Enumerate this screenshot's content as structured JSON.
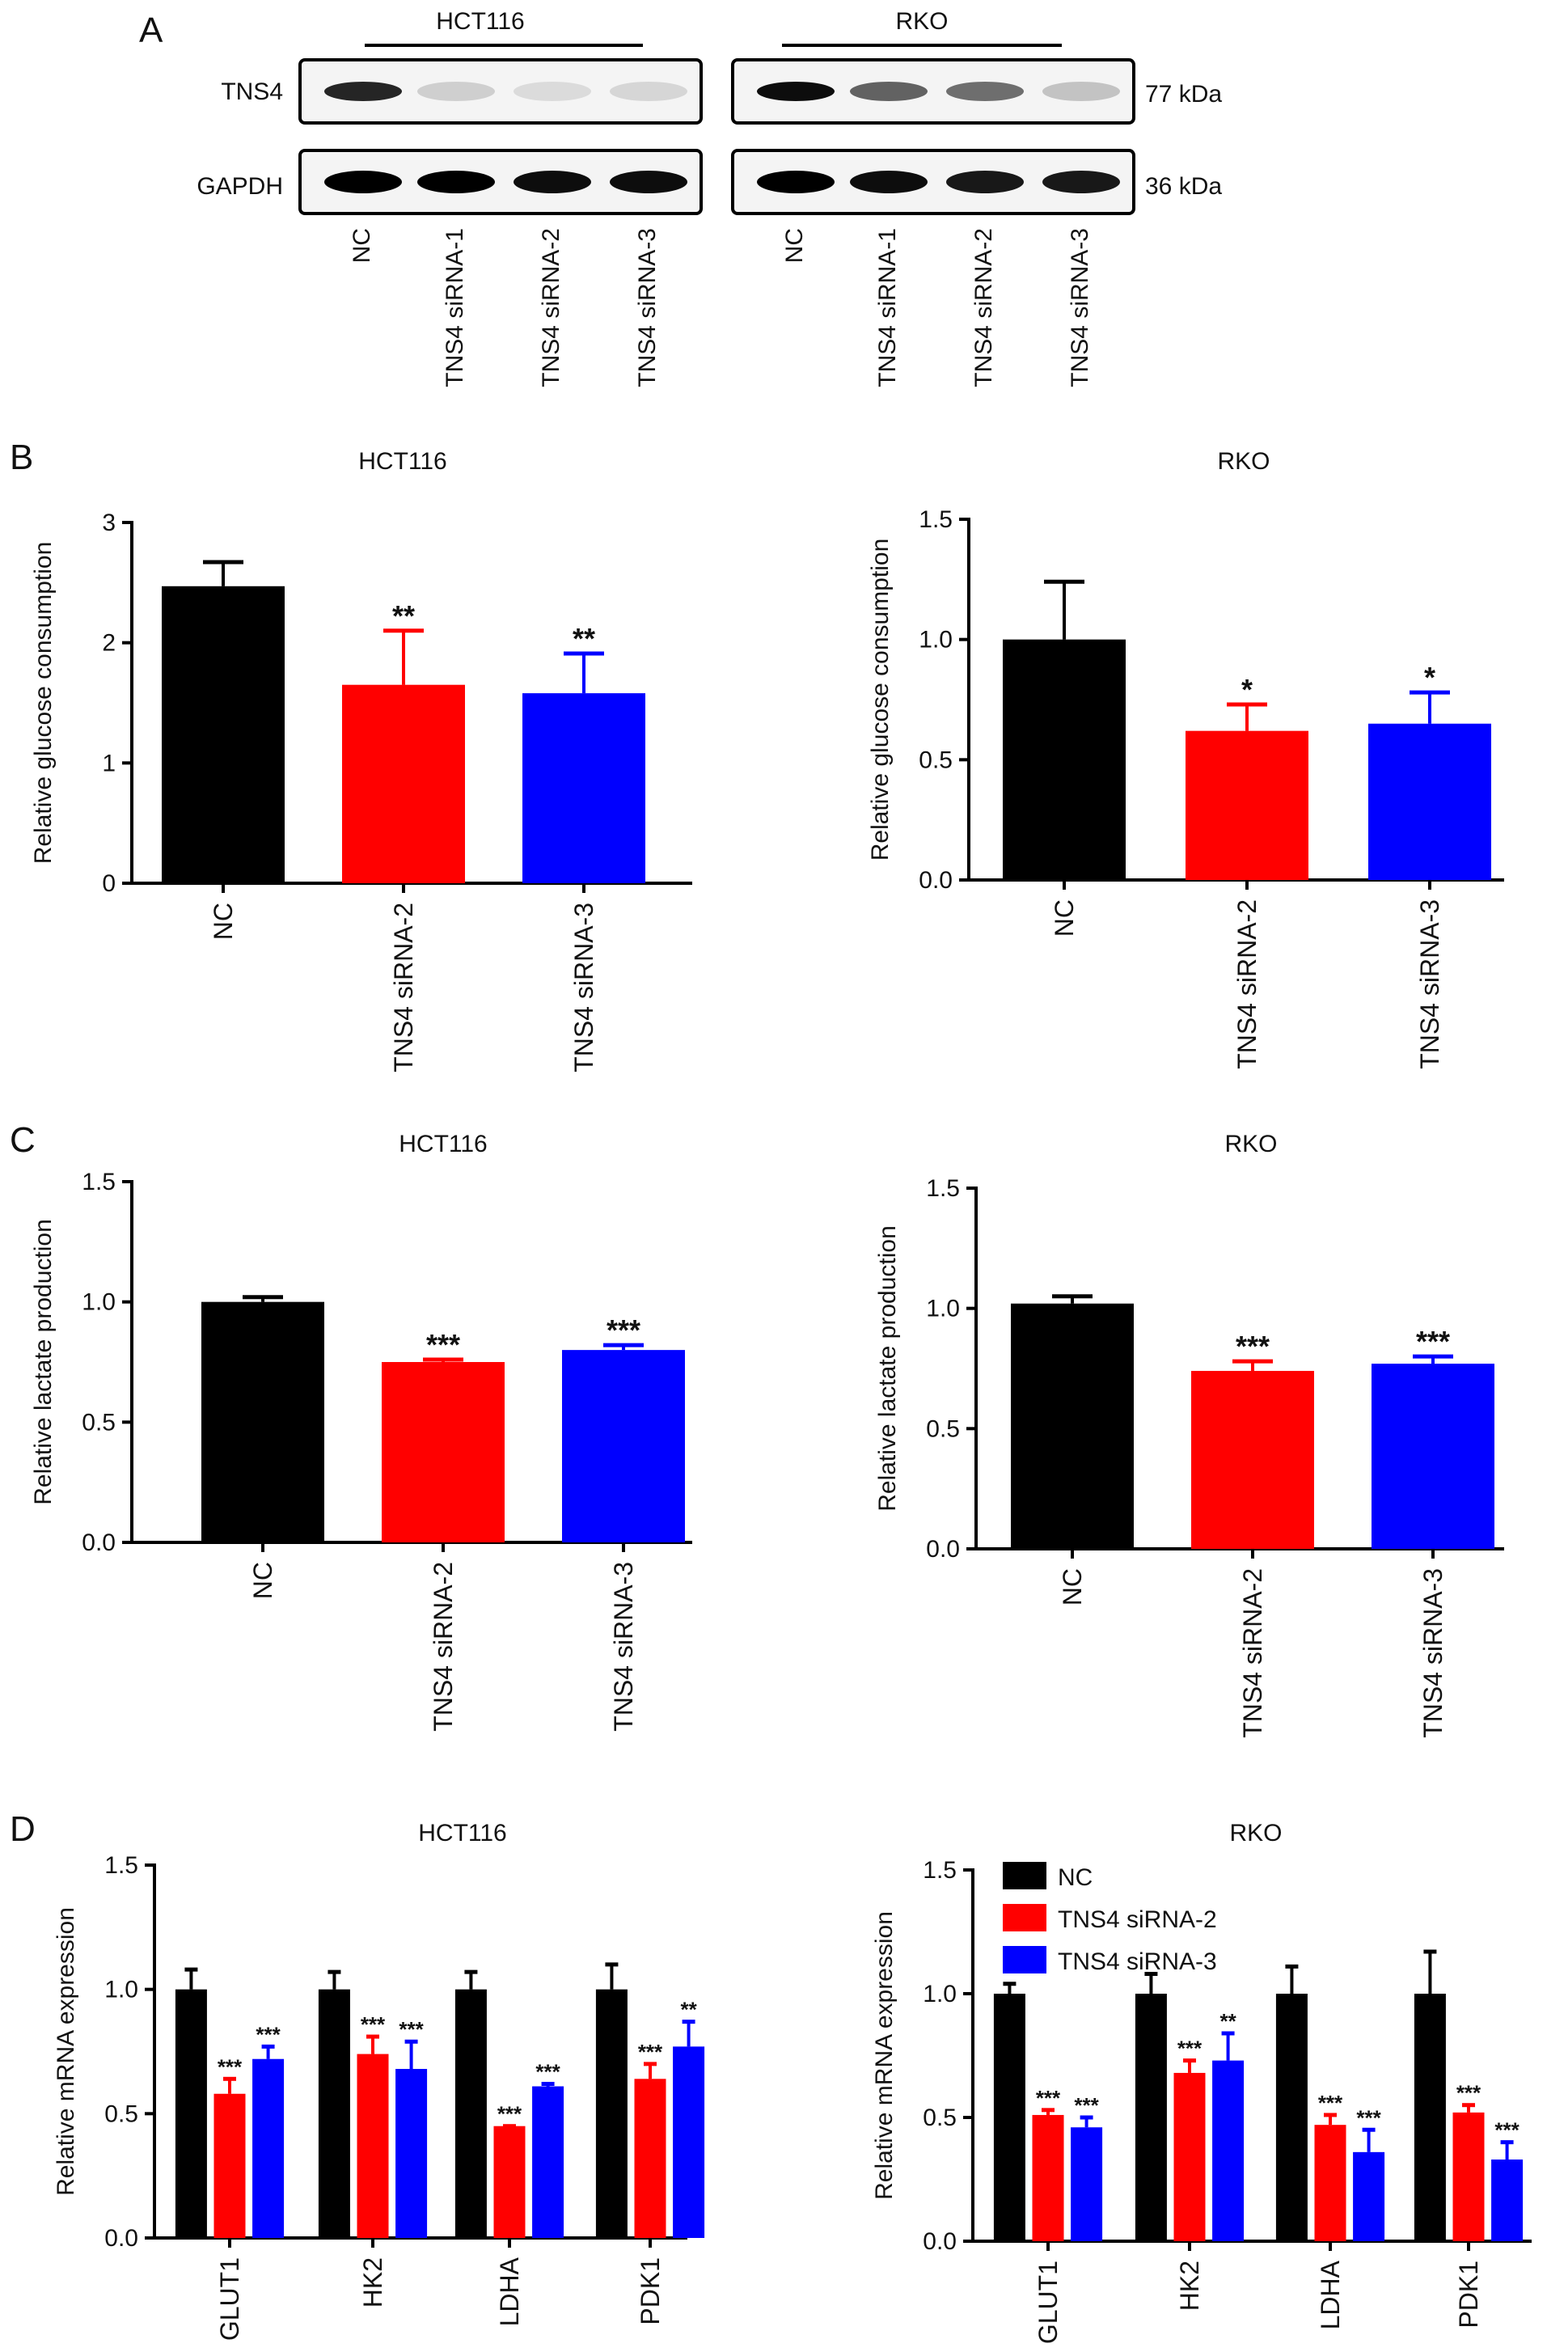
{
  "panel_letters": [
    "A",
    "B",
    "C",
    "D"
  ],
  "blot": {
    "cell_lines": [
      "HCT116",
      "RKO"
    ],
    "proteins": [
      "TNS4",
      "GAPDH"
    ],
    "sizes": [
      "77 kDa",
      "36 kDa"
    ],
    "lanes": [
      "NC",
      "TNS4 siRNA-1",
      "TNS4 siRNA-2",
      "TNS4 siRNA-3"
    ],
    "tns4_intensity": [
      [
        0.85,
        0.15,
        0.1,
        0.12
      ],
      [
        0.95,
        0.6,
        0.55,
        0.2
      ]
    ],
    "gapdh_intensity": [
      [
        1,
        1,
        0.95,
        0.95
      ],
      [
        1,
        0.95,
        0.9,
        0.9
      ]
    ]
  },
  "colors": {
    "NC": "#000000",
    "siRNA2": "#ff0000",
    "siRNA3": "#0000ff"
  },
  "chart_data": [
    {
      "id": "B-HCT116",
      "type": "bar",
      "title": "HCT116",
      "ylabel": "Relative glucose consumption",
      "ylim": [
        0,
        3
      ],
      "yticks": [
        "0",
        "1",
        "2",
        "3"
      ],
      "ytick_values": [
        0,
        1,
        2,
        3
      ],
      "categories": [
        "NC",
        "TNS4 siRNA-2",
        "TNS4 siRNA-3"
      ],
      "values": [
        2.47,
        1.65,
        1.58
      ],
      "errors": [
        0.2,
        0.45,
        0.33
      ],
      "significance": [
        "",
        "**",
        "**"
      ]
    },
    {
      "id": "B-RKO",
      "type": "bar",
      "title": "RKO",
      "ylabel": "Relative glucose consumption",
      "ylim": [
        0,
        1.5
      ],
      "yticks": [
        "0.0",
        "0.5",
        "1.0",
        "1.5"
      ],
      "ytick_values": [
        0,
        0.5,
        1,
        1.5
      ],
      "categories": [
        "NC",
        "TNS4 siRNA-2",
        "TNS4 siRNA-3"
      ],
      "values": [
        1.0,
        0.62,
        0.65
      ],
      "errors": [
        0.24,
        0.11,
        0.13
      ],
      "significance": [
        "",
        "*",
        "*"
      ]
    },
    {
      "id": "C-HCT116",
      "type": "bar",
      "title": "HCT116",
      "ylabel": "Relative lactate production",
      "ylim": [
        0,
        1.5
      ],
      "yticks": [
        "0.0",
        "0.5",
        "1.0",
        "1.5"
      ],
      "ytick_values": [
        0,
        0.5,
        1,
        1.5
      ],
      "categories": [
        "NC",
        "TNS4 siRNA-2",
        "TNS4 siRNA-3"
      ],
      "values": [
        1.0,
        0.75,
        0.8
      ],
      "errors": [
        0.02,
        0.01,
        0.02
      ],
      "significance": [
        "",
        "***",
        "***"
      ]
    },
    {
      "id": "C-RKO",
      "type": "bar",
      "title": "RKO",
      "ylabel": "Relative lactate production",
      "ylim": [
        0,
        1.5
      ],
      "yticks": [
        "0.0",
        "0.5",
        "1.0",
        "1.5"
      ],
      "ytick_values": [
        0,
        0.5,
        1,
        1.5
      ],
      "categories": [
        "NC",
        "TNS4 siRNA-2",
        "TNS4 siRNA-3"
      ],
      "values": [
        1.02,
        0.74,
        0.77
      ],
      "errors": [
        0.03,
        0.04,
        0.03
      ],
      "significance": [
        "",
        "***",
        "***"
      ]
    },
    {
      "id": "D-HCT116",
      "type": "bar",
      "title": "HCT116",
      "ylabel": "Relative mRNA expression",
      "ylim": [
        0,
        1.5
      ],
      "yticks": [
        "0.0",
        "0.5",
        "1.0",
        "1.5"
      ],
      "ytick_values": [
        0,
        0.5,
        1,
        1.5
      ],
      "categories": [
        "GLUT1",
        "HK2",
        "LDHA",
        "PDK1"
      ],
      "series": [
        {
          "name": "NC",
          "values": [
            1.0,
            1.0,
            1.0,
            1.0
          ],
          "errors": [
            0.08,
            0.07,
            0.07,
            0.1
          ],
          "significance": [
            "",
            "",
            "",
            ""
          ]
        },
        {
          "name": "TNS4 siRNA-2",
          "values": [
            0.58,
            0.74,
            0.45,
            0.64
          ],
          "errors": [
            0.06,
            0.07,
            0.0,
            0.06
          ],
          "significance": [
            "***",
            "***",
            "***",
            "***"
          ]
        },
        {
          "name": "TNS4 siRNA-3",
          "values": [
            0.72,
            0.68,
            0.61,
            0.77
          ],
          "errors": [
            0.05,
            0.11,
            0.01,
            0.1
          ],
          "significance": [
            "***",
            "***",
            "***",
            "**"
          ]
        }
      ]
    },
    {
      "id": "D-RKO",
      "type": "bar",
      "title": "RKO",
      "ylabel": "Relative mRNA expression",
      "ylim": [
        0,
        1.5
      ],
      "yticks": [
        "0.0",
        "0.5",
        "1.0",
        "1.5"
      ],
      "ytick_values": [
        0,
        0.5,
        1,
        1.5
      ],
      "categories": [
        "GLUT1",
        "HK2",
        "LDHA",
        "PDK1"
      ],
      "legend": "top-left",
      "series": [
        {
          "name": "NC",
          "values": [
            1.0,
            1.0,
            1.0,
            1.0
          ],
          "errors": [
            0.04,
            0.08,
            0.11,
            0.17
          ],
          "significance": [
            "",
            "",
            "",
            ""
          ]
        },
        {
          "name": "TNS4 siRNA-2",
          "values": [
            0.51,
            0.68,
            0.47,
            0.52
          ],
          "errors": [
            0.02,
            0.05,
            0.04,
            0.03
          ],
          "significance": [
            "***",
            "***",
            "***",
            "***"
          ]
        },
        {
          "name": "TNS4 siRNA-3",
          "values": [
            0.46,
            0.73,
            0.36,
            0.33
          ],
          "errors": [
            0.04,
            0.11,
            0.09,
            0.07
          ],
          "significance": [
            "***",
            "**",
            "***",
            "***"
          ]
        }
      ]
    }
  ]
}
